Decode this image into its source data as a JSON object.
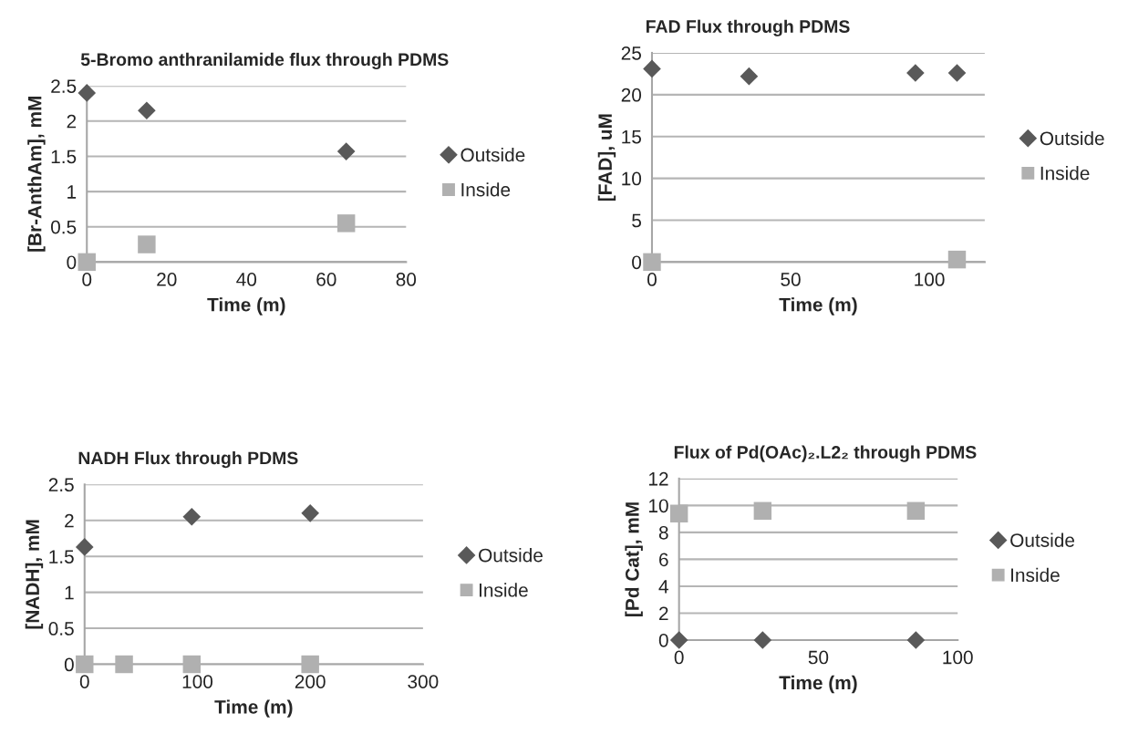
{
  "chart_data": [
    {
      "type": "scatter",
      "title": "5-Bromo anthranilamide flux through PDMS",
      "xlabel": "Time (m)",
      "ylabel": "[Br-AnthAm], mM",
      "xlim": [
        0,
        80
      ],
      "xticks": [
        0,
        20,
        40,
        60,
        80
      ],
      "ylim": [
        0,
        2.5
      ],
      "yticks": [
        0,
        0.5,
        1,
        1.5,
        2,
        2.5
      ],
      "grid": "y",
      "legend": "right",
      "series": [
        {
          "name": "Outside",
          "color": "#595959",
          "marker": "diamond",
          "x": [
            0,
            15,
            65
          ],
          "values": [
            2.4,
            2.15,
            1.57
          ]
        },
        {
          "name": "Inside",
          "color": "#b0b0b0",
          "marker": "square",
          "x": [
            0,
            15,
            65
          ],
          "values": [
            0,
            0.25,
            0.55
          ]
        }
      ]
    },
    {
      "type": "scatter",
      "title": "FAD Flux through PDMS",
      "xlabel": "Time (m)",
      "ylabel": "[FAD], uM",
      "xlim": [
        0,
        120
      ],
      "xticks": [
        0,
        50,
        100
      ],
      "ylim": [
        0,
        25
      ],
      "yticks": [
        0,
        5,
        10,
        15,
        20,
        25
      ],
      "grid": "y",
      "legend": "right",
      "series": [
        {
          "name": "Outside",
          "color": "#595959",
          "marker": "diamond",
          "x": [
            0,
            35,
            95,
            110
          ],
          "values": [
            23.1,
            22.2,
            22.6,
            22.6
          ]
        },
        {
          "name": "Inside",
          "color": "#b0b0b0",
          "marker": "square",
          "x": [
            0,
            110
          ],
          "values": [
            0,
            0.3
          ]
        }
      ]
    },
    {
      "type": "scatter",
      "title": "NADH Flux through PDMS",
      "xlabel": "Time (m)",
      "ylabel": "[NADH], mM",
      "xlim": [
        0,
        300
      ],
      "xticks": [
        0,
        100,
        200,
        300
      ],
      "ylim": [
        0,
        2.5
      ],
      "yticks": [
        0,
        0.5,
        1,
        1.5,
        2,
        2.5
      ],
      "grid": "y",
      "legend": "right",
      "series": [
        {
          "name": "Outside",
          "color": "#595959",
          "marker": "diamond",
          "x": [
            0,
            95,
            200
          ],
          "values": [
            1.63,
            2.05,
            2.1
          ]
        },
        {
          "name": "Inside",
          "color": "#b0b0b0",
          "marker": "square",
          "x": [
            0,
            35,
            95,
            200
          ],
          "values": [
            0,
            0,
            0,
            0
          ]
        }
      ]
    },
    {
      "type": "scatter",
      "title": "Flux of Pd(OAc)₂.L2₂ through PDMS",
      "xlabel": "Time (m)",
      "ylabel": "[Pd Cat], mM",
      "xlim": [
        0,
        100
      ],
      "xticks": [
        0,
        50,
        100
      ],
      "ylim": [
        0,
        12
      ],
      "yticks": [
        0,
        2,
        4,
        6,
        8,
        10,
        12
      ],
      "grid": "y",
      "legend": "right",
      "series": [
        {
          "name": "Outside",
          "color": "#595959",
          "marker": "diamond",
          "x": [
            0,
            30,
            85
          ],
          "values": [
            0,
            0,
            0
          ]
        },
        {
          "name": "Inside",
          "color": "#b0b0b0",
          "marker": "square",
          "x": [
            0,
            30,
            85
          ],
          "values": [
            9.4,
            9.6,
            9.6
          ]
        }
      ]
    }
  ]
}
